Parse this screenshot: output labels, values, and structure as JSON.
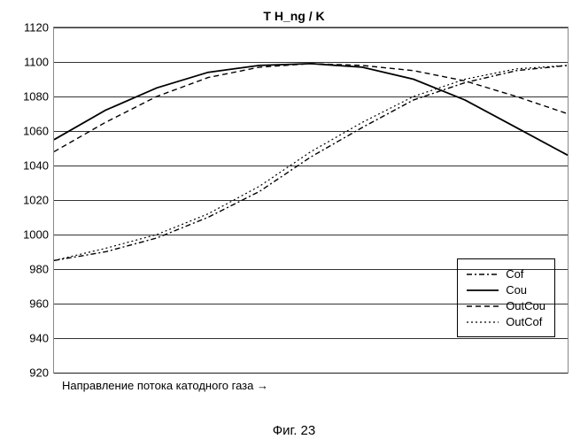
{
  "chart": {
    "type": "line",
    "title": "T H_ng / K",
    "title_fontsize": 14,
    "background_color": "#ffffff",
    "grid_color": "#000000",
    "ylim": [
      920,
      1120
    ],
    "ytick_step": 20,
    "yticks": [
      920,
      940,
      960,
      980,
      1000,
      1020,
      1040,
      1060,
      1080,
      1100,
      1120
    ],
    "xlim": [
      0,
      10
    ],
    "xlabel": "Направление потока катодного газа →",
    "label_fontsize": 13,
    "series": [
      {
        "name": "Cof",
        "color": "#000000",
        "dash": "6 3 2 3",
        "width": 1.4,
        "y": [
          985,
          990,
          998,
          1010,
          1025,
          1045,
          1062,
          1078,
          1088,
          1095,
          1098
        ]
      },
      {
        "name": "Cou",
        "color": "#000000",
        "dash": "",
        "width": 1.8,
        "y": [
          1055,
          1072,
          1085,
          1094,
          1098,
          1099,
          1097,
          1090,
          1078,
          1062,
          1046
        ]
      },
      {
        "name": "OutCou",
        "color": "#000000",
        "dash": "6 4",
        "width": 1.4,
        "y": [
          1048,
          1065,
          1080,
          1091,
          1097,
          1099,
          1098,
          1095,
          1089,
          1080,
          1070
        ]
      },
      {
        "name": "OutCof",
        "color": "#000000",
        "dash": "2 3",
        "width": 1.2,
        "y": [
          985,
          992,
          1000,
          1012,
          1028,
          1048,
          1065,
          1080,
          1090,
          1096,
          1098
        ]
      }
    ],
    "legend_position": "bottom-right"
  },
  "caption": "Фиг. 23"
}
